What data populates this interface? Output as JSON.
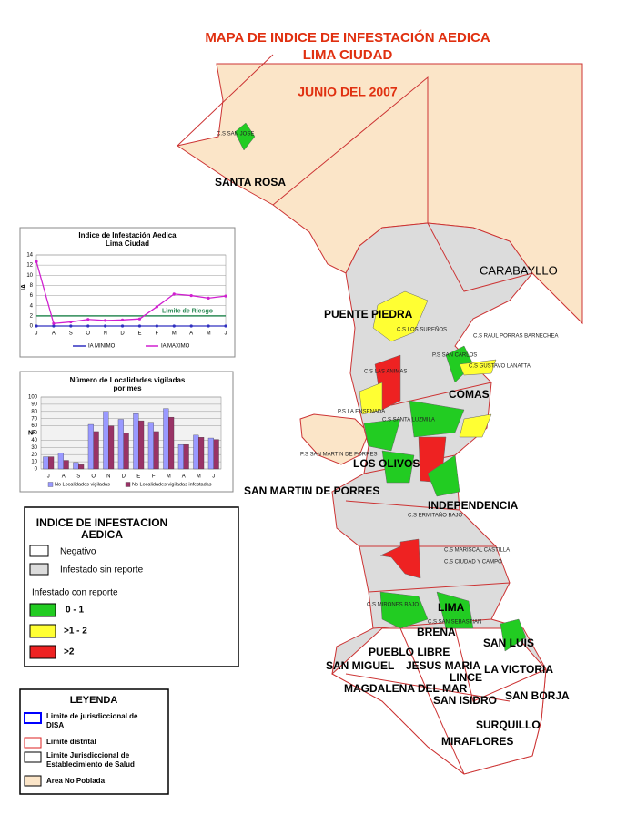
{
  "header": {
    "title": "MAPA DE INDICE DE INFESTACIÓN AEDICA",
    "subtitle": "LIMA CIUDAD",
    "date": "JUNIO DEL 2007"
  },
  "map": {
    "districts": [
      "SANTA ROSA",
      "CARABAYLLO",
      "PUENTE PIEDRA",
      "COMAS",
      "LOS OLIVOS",
      "SAN MARTIN DE PORRES",
      "INDEPENDENCIA",
      "LIMA",
      "BRENA",
      "SAN LUIS",
      "PUEBLO LIBRE",
      "JESUS MARIA",
      "SAN MIGUEL",
      "LINCE",
      "LA VICTORIA",
      "MAGDALENA DEL MAR",
      "SAN ISIDRO",
      "SAN BORJA",
      "SURQUILLO",
      "MIRAFLORES"
    ],
    "facilities": [
      "C.S SAN JOSE",
      "C.S LOS SUREÑOS",
      "C.S RAUL PORRAS BARNECHEA",
      "P.S SAN CARLOS",
      "C.S GUSTAVO LANATTA",
      "C.S LAS ANIMAS",
      "P.S LA ENSENADA",
      "C.S SANTA LUZMILA",
      "P.S SAN MARTIN DE PORRES",
      "C.S ERMITAÑO BAJO",
      "C.S MARISCAL CASTILLA",
      "C.S CIUDAD Y CAMPO",
      "C.S MIRONES BAJO",
      "C.S SAN SEBASTIAN"
    ]
  },
  "chart_data": [
    {
      "type": "line",
      "title": "Indice de Infestación Aedica",
      "subtitle": "Lima Ciudad",
      "y_label": "IA",
      "categories": [
        "J",
        "A",
        "S",
        "O",
        "N",
        "D",
        "E",
        "F",
        "M",
        "A",
        "M",
        "J"
      ],
      "ylim": [
        0,
        14
      ],
      "yticks": [
        0,
        2,
        4,
        6,
        8,
        10,
        12,
        14
      ],
      "grid": true,
      "risk_line": {
        "value": 2,
        "label": "Limite de Riesgo",
        "color": "#2e8b57"
      },
      "series": [
        {
          "name": "IA MINIMO",
          "color": "#3030c0",
          "values": [
            0,
            0,
            0,
            0,
            0,
            0,
            0,
            0,
            0,
            0,
            0,
            0
          ]
        },
        {
          "name": "IA MAXIMO",
          "color": "#d020d0",
          "values": [
            12.7,
            0.5,
            0.8,
            1.3,
            1.1,
            1.2,
            1.4,
            3.8,
            6.3,
            6.0,
            5.5,
            5.9
          ]
        }
      ]
    },
    {
      "type": "bar",
      "title": "Número de Localidades vigiladas",
      "subtitle": "por mes",
      "y_label": "N°",
      "categories": [
        "J",
        "A",
        "S",
        "O",
        "N",
        "D",
        "E",
        "F",
        "M",
        "A",
        "M",
        "J"
      ],
      "ylim": [
        0,
        100
      ],
      "yticks": [
        0,
        10,
        20,
        30,
        40,
        50,
        60,
        70,
        80,
        90,
        100
      ],
      "grid": true,
      "series": [
        {
          "name": "No Localidades vigiladas",
          "color": "#9999ff",
          "values": [
            17,
            22,
            9,
            62,
            80,
            69,
            77,
            65,
            84,
            34,
            47,
            43
          ]
        },
        {
          "name": "No Localidades vigiladas infestadas",
          "color": "#993366",
          "values": [
            17,
            12,
            6,
            52,
            60,
            50,
            67,
            52,
            72,
            34,
            44,
            41
          ]
        }
      ]
    }
  ],
  "legend_index": {
    "title1": "INDICE DE INFESTACION",
    "title2": "AEDICA",
    "negative": "Negativo",
    "no_report": "Infestado sin reporte",
    "with_report": "Infestado con reporte",
    "low": "0 - 1",
    "mid": ">1 - 2",
    "high": ">2"
  },
  "legend_map": {
    "title": "LEYENDA",
    "disa1": "Limite de jurisdiccional de",
    "disa2": "DISA",
    "district": "Limite distrital",
    "est1": "Limite Jurisdiccional de",
    "est2": "Establecimiento de Salud",
    "unpopulated": "Area No Poblada"
  }
}
